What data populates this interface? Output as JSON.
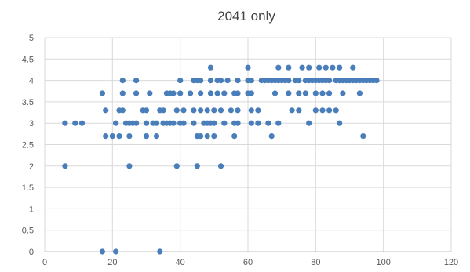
{
  "chart_data": {
    "type": "scatter",
    "title": "2041 only",
    "xlabel": "",
    "ylabel": "",
    "xlim": [
      0,
      120
    ],
    "ylim": [
      0,
      5
    ],
    "x_ticks": [
      "0",
      "20",
      "40",
      "60",
      "80",
      "100",
      "120"
    ],
    "y_ticks": [
      "0",
      "0.5",
      "1",
      "1.5",
      "2",
      "2.5",
      "3",
      "3.5",
      "4",
      "4.5",
      "5"
    ],
    "grid": true,
    "legend": "none",
    "marker_color": "#4a7ebb",
    "points": [
      [
        6,
        3
      ],
      [
        6,
        2
      ],
      [
        9,
        3
      ],
      [
        11,
        3
      ],
      [
        17,
        3.7
      ],
      [
        17,
        0
      ],
      [
        18,
        3.3
      ],
      [
        18,
        2.7
      ],
      [
        20,
        2.7
      ],
      [
        21,
        0
      ],
      [
        21,
        3
      ],
      [
        22,
        3.3
      ],
      [
        22,
        2.7
      ],
      [
        23,
        4
      ],
      [
        23,
        3.7
      ],
      [
        23,
        3.3
      ],
      [
        24,
        3
      ],
      [
        25,
        3
      ],
      [
        25,
        2
      ],
      [
        25,
        2.7
      ],
      [
        26,
        3
      ],
      [
        27,
        4
      ],
      [
        27,
        3.7
      ],
      [
        27,
        3
      ],
      [
        29,
        3.3
      ],
      [
        30,
        3.3
      ],
      [
        30,
        3
      ],
      [
        30,
        2.7
      ],
      [
        31,
        3.7
      ],
      [
        32,
        3
      ],
      [
        33,
        3
      ],
      [
        33,
        2.7
      ],
      [
        34,
        3.3
      ],
      [
        34,
        0
      ],
      [
        35,
        3.3
      ],
      [
        35,
        3
      ],
      [
        36,
        3.7
      ],
      [
        36,
        3
      ],
      [
        37,
        3.7
      ],
      [
        37,
        3
      ],
      [
        38,
        3.7
      ],
      [
        38,
        3
      ],
      [
        39,
        3.3
      ],
      [
        39,
        2
      ],
      [
        40,
        4
      ],
      [
        40,
        3.7
      ],
      [
        40,
        3
      ],
      [
        41,
        3.3
      ],
      [
        41,
        3
      ],
      [
        43,
        3.7
      ],
      [
        44,
        4
      ],
      [
        44,
        3.3
      ],
      [
        44,
        3
      ],
      [
        45,
        4
      ],
      [
        45,
        2.7
      ],
      [
        45,
        2
      ],
      [
        46,
        4
      ],
      [
        46,
        3.7
      ],
      [
        46,
        3.3
      ],
      [
        46,
        2.7
      ],
      [
        47,
        3
      ],
      [
        48,
        3.3
      ],
      [
        48,
        3
      ],
      [
        48,
        2.7
      ],
      [
        49,
        4.3
      ],
      [
        49,
        4
      ],
      [
        49,
        3.7
      ],
      [
        49,
        3
      ],
      [
        50,
        3.3
      ],
      [
        50,
        3
      ],
      [
        50,
        2.7
      ],
      [
        51,
        4
      ],
      [
        51,
        3.7
      ],
      [
        52,
        4
      ],
      [
        52,
        3.3
      ],
      [
        52,
        2
      ],
      [
        53,
        3.7
      ],
      [
        53,
        3
      ],
      [
        54,
        4
      ],
      [
        55,
        3.3
      ],
      [
        56,
        3.7
      ],
      [
        56,
        3
      ],
      [
        56,
        2.7
      ],
      [
        57,
        4
      ],
      [
        57,
        3.7
      ],
      [
        57,
        3.3
      ],
      [
        57,
        3
      ],
      [
        60,
        4.3
      ],
      [
        60,
        4
      ],
      [
        60,
        3.7
      ],
      [
        61,
        4
      ],
      [
        61,
        3.7
      ],
      [
        61,
        3.3
      ],
      [
        61,
        3
      ],
      [
        63,
        3.3
      ],
      [
        63,
        3
      ],
      [
        64,
        4
      ],
      [
        65,
        4
      ],
      [
        66,
        4
      ],
      [
        66,
        3
      ],
      [
        67,
        4
      ],
      [
        67,
        2.7
      ],
      [
        68,
        4
      ],
      [
        68,
        3.7
      ],
      [
        69,
        4.3
      ],
      [
        69,
        4
      ],
      [
        69,
        3
      ],
      [
        70,
        4
      ],
      [
        71,
        4
      ],
      [
        72,
        4.3
      ],
      [
        72,
        4
      ],
      [
        72,
        3.7
      ],
      [
        73,
        3.3
      ],
      [
        74,
        4
      ],
      [
        75,
        4
      ],
      [
        75,
        3.7
      ],
      [
        75,
        3.3
      ],
      [
        76,
        4.3
      ],
      [
        77,
        4
      ],
      [
        77,
        3.7
      ],
      [
        78,
        4.3
      ],
      [
        78,
        4
      ],
      [
        78,
        3
      ],
      [
        79,
        4
      ],
      [
        80,
        4
      ],
      [
        80,
        3.7
      ],
      [
        80,
        3.3
      ],
      [
        81,
        4.3
      ],
      [
        81,
        4
      ],
      [
        82,
        4
      ],
      [
        82,
        3.7
      ],
      [
        82,
        3.3
      ],
      [
        83,
        4.3
      ],
      [
        83,
        4
      ],
      [
        84,
        4
      ],
      [
        84,
        3.7
      ],
      [
        84,
        3.3
      ],
      [
        85,
        4.3
      ],
      [
        86,
        4
      ],
      [
        86,
        3.3
      ],
      [
        87,
        4.3
      ],
      [
        87,
        4
      ],
      [
        87,
        3
      ],
      [
        88,
        4
      ],
      [
        88,
        3.7
      ],
      [
        89,
        4
      ],
      [
        90,
        4
      ],
      [
        91,
        4.3
      ],
      [
        91,
        4
      ],
      [
        92,
        4
      ],
      [
        93,
        4
      ],
      [
        93,
        3.7
      ],
      [
        94,
        4
      ],
      [
        94,
        2.7
      ],
      [
        95,
        4
      ],
      [
        96,
        4
      ],
      [
        97,
        4
      ],
      [
        98,
        4
      ]
    ]
  }
}
